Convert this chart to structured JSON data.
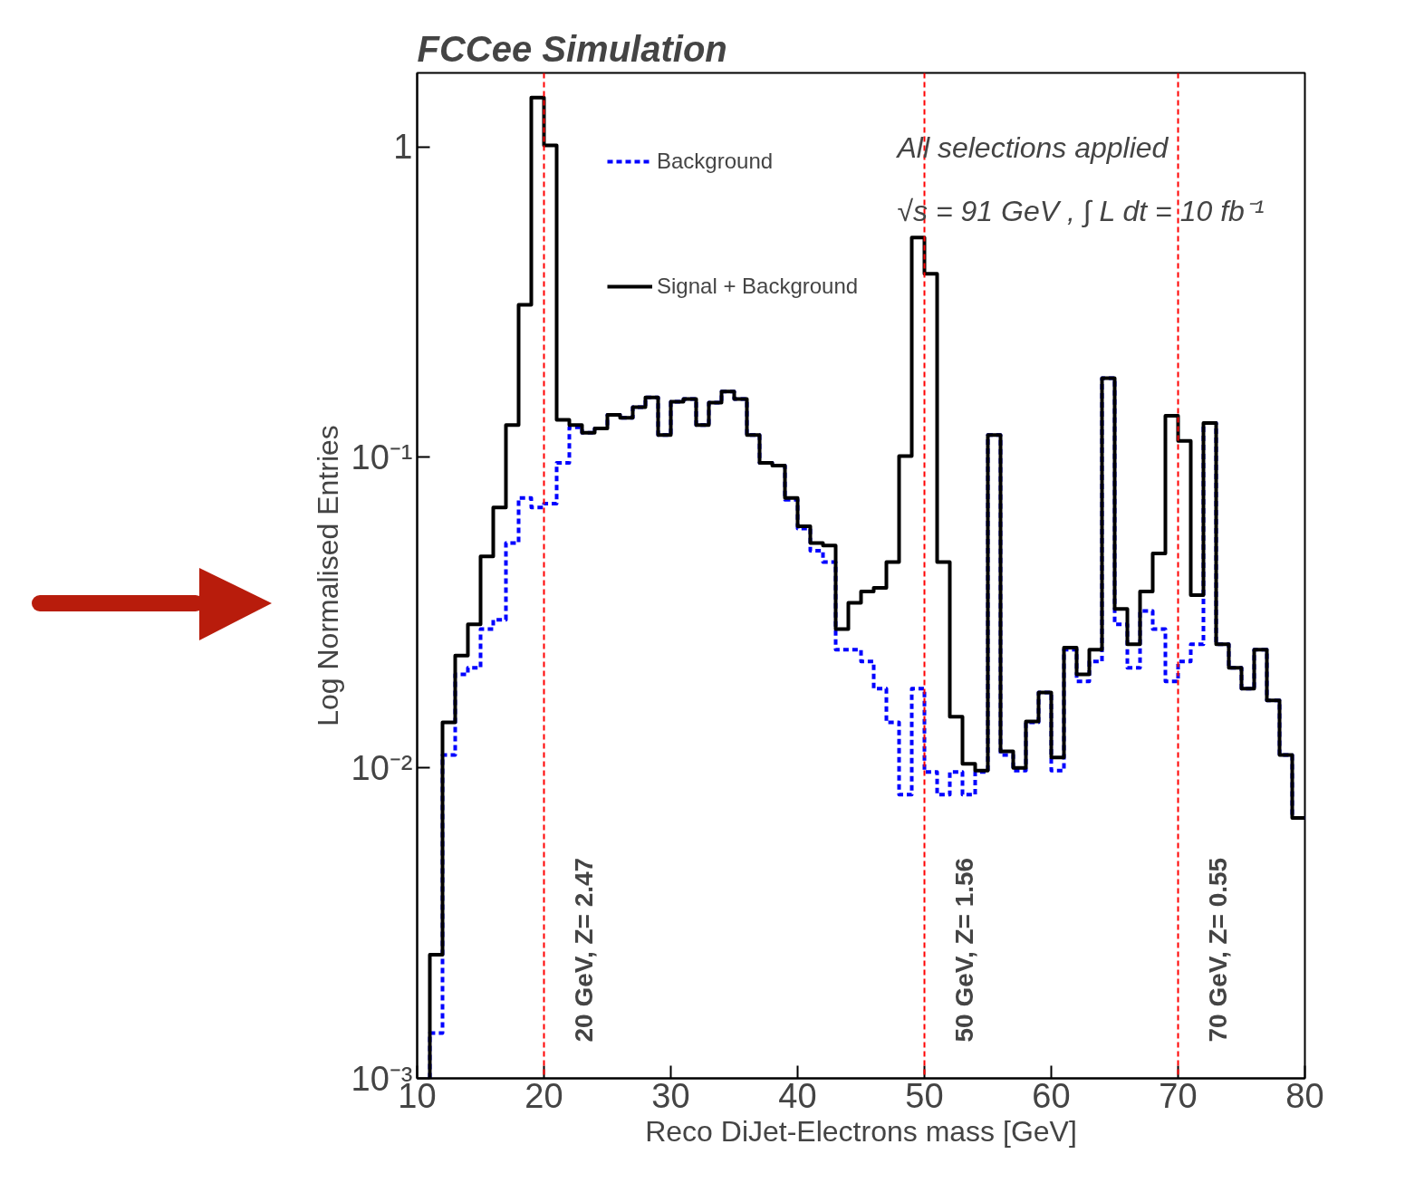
{
  "chart_data": {
    "type": "histogram",
    "title": "FCCee Simulation",
    "xlabel": "Reco DiJet-Electrons mass [GeV]",
    "ylabel": "Log Normalised Entries",
    "bins": [
      11,
      12,
      13,
      14,
      15,
      16,
      17,
      18,
      19,
      20,
      21,
      22,
      23,
      24,
      25,
      26,
      27,
      28,
      29,
      30,
      31,
      32,
      33,
      34,
      35,
      36,
      37,
      38,
      39,
      40,
      41,
      42,
      43,
      44,
      45,
      46,
      47,
      48,
      49,
      50,
      51,
      52,
      53,
      54,
      55,
      56,
      57,
      58,
      59,
      60,
      61,
      62,
      63,
      64,
      65,
      66,
      67,
      68,
      69,
      70,
      71,
      72,
      73,
      74,
      75,
      76,
      77,
      78,
      79,
      80
    ],
    "series": [
      {
        "name": "Background",
        "color": "#0000ff",
        "line_style": "dashed",
        "values": [
          0.0014,
          0.011,
          0.02,
          0.021,
          0.028,
          0.03,
          0.053,
          0.074,
          0.069,
          0.071,
          0.096,
          0.125,
          0.12,
          0.124,
          0.137,
          0.134,
          0.145,
          0.156,
          0.118,
          0.151,
          0.154,
          0.127,
          0.15,
          0.163,
          0.154,
          0.118,
          0.096,
          0.094,
          0.073,
          0.059,
          0.05,
          0.046,
          0.024,
          0.024,
          0.022,
          0.018,
          0.014,
          0.0082,
          0.018,
          0.0097,
          0.0082,
          0.0097,
          0.0082,
          0.0097,
          0.118,
          0.011,
          0.0098,
          0.014,
          0.0175,
          0.0098,
          0.024,
          0.019,
          0.022,
          0.18,
          0.029,
          0.021,
          0.032,
          0.028,
          0.019,
          0.022,
          0.025,
          0.129,
          0.025,
          0.021,
          0.018,
          0.024,
          0.0165,
          0.011,
          0.0069
        ]
      },
      {
        "name": "Signal + Background",
        "color": "#000000",
        "line_style": "solid",
        "values": [
          0.0025,
          0.014,
          0.023,
          0.029,
          0.048,
          0.069,
          0.127,
          0.31,
          1.44,
          1.01,
          0.132,
          0.127,
          0.12,
          0.124,
          0.137,
          0.134,
          0.145,
          0.156,
          0.118,
          0.151,
          0.154,
          0.127,
          0.15,
          0.163,
          0.154,
          0.118,
          0.096,
          0.094,
          0.074,
          0.06,
          0.053,
          0.052,
          0.028,
          0.034,
          0.037,
          0.038,
          0.046,
          0.101,
          0.51,
          0.39,
          0.046,
          0.0146,
          0.0103,
          0.0098,
          0.118,
          0.0113,
          0.01,
          0.0141,
          0.0175,
          0.0108,
          0.0244,
          0.02,
          0.024,
          0.18,
          0.0325,
          0.025,
          0.037,
          0.049,
          0.136,
          0.113,
          0.036,
          0.129,
          0.025,
          0.021,
          0.018,
          0.024,
          0.0165,
          0.011,
          0.0069
        ]
      }
    ],
    "xlim": [
      10,
      80
    ],
    "xticks": [
      10,
      20,
      30,
      40,
      50,
      60,
      70,
      80
    ],
    "ylim": [
      0.001,
      1.73
    ],
    "yticks": [
      {
        "value": 0.001,
        "label": "10⁻³"
      },
      {
        "value": 0.01,
        "label": "10⁻²"
      },
      {
        "value": 0.1,
        "label": "10⁻¹"
      },
      {
        "value": 1,
        "label": "1"
      }
    ],
    "log": true,
    "grid": false,
    "legend": "top left",
    "ref_lines": [
      {
        "axis": "x",
        "value": 20,
        "label": "20 GeV, Z= 2.47",
        "color": "#ff0000",
        "line_style": "dashed"
      },
      {
        "axis": "x",
        "value": 50,
        "label": "50 GeV, Z= 1.56",
        "color": "#ff0000",
        "line_style": "dashed"
      },
      {
        "axis": "x",
        "value": 70,
        "label": "70 GeV, Z= 0.55",
        "color": "#ff0000",
        "line_style": "dashed"
      }
    ],
    "annotations": [
      "All selections applied",
      "√s = 91 GeV , ∫ L dt = 10 fb⁻¹"
    ]
  }
}
